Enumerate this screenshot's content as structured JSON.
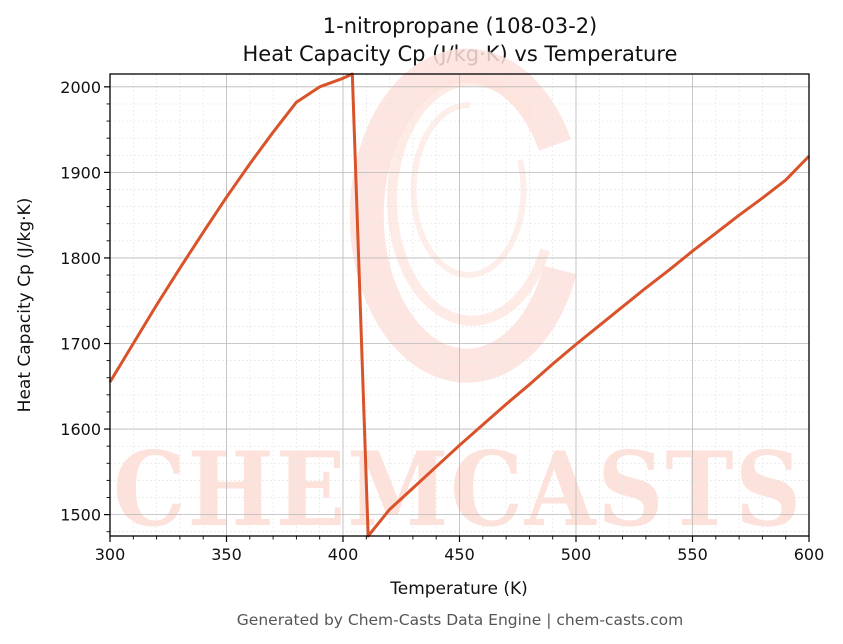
{
  "chart_data": {
    "type": "line",
    "title": "1-nitropropane (108-03-2)",
    "subtitle": "Heat Capacity Cp (J/kg·K) vs Temperature",
    "xlabel": "Temperature (K)",
    "ylabel": "Heat Capacity Cp (J/kg·K)",
    "xlim": [
      300,
      600
    ],
    "ylim": [
      1475,
      2015
    ],
    "xticks": [
      300,
      350,
      400,
      450,
      500,
      550,
      600
    ],
    "yticks": [
      1500,
      1600,
      1700,
      1800,
      1900,
      2000
    ],
    "grid": true,
    "series": [
      {
        "color": "#d9532a",
        "x": [
          300,
          310,
          320,
          330,
          340,
          350,
          360,
          370,
          380,
          390,
          400,
          404,
          410.8,
          420,
          430,
          440,
          450,
          460,
          470,
          480,
          490,
          500,
          510,
          520,
          530,
          540,
          550,
          560,
          570,
          580,
          590,
          600
        ],
        "y": [
          1655,
          1700,
          1745,
          1788,
          1830,
          1871,
          1910,
          1947,
          1982,
          2000,
          2010,
          2015,
          1475,
          1506,
          1531,
          1556,
          1581,
          1605,
          1629,
          1652,
          1676,
          1699,
          1721,
          1743,
          1765,
          1786,
          1808,
          1829,
          1850,
          1870,
          1891,
          1919
        ]
      }
    ]
  },
  "watermark": {
    "text": "CHEMCASTS",
    "color": "#fde2dc"
  },
  "footer": "Generated by Chem-Casts Data Engine | chem-casts.com"
}
